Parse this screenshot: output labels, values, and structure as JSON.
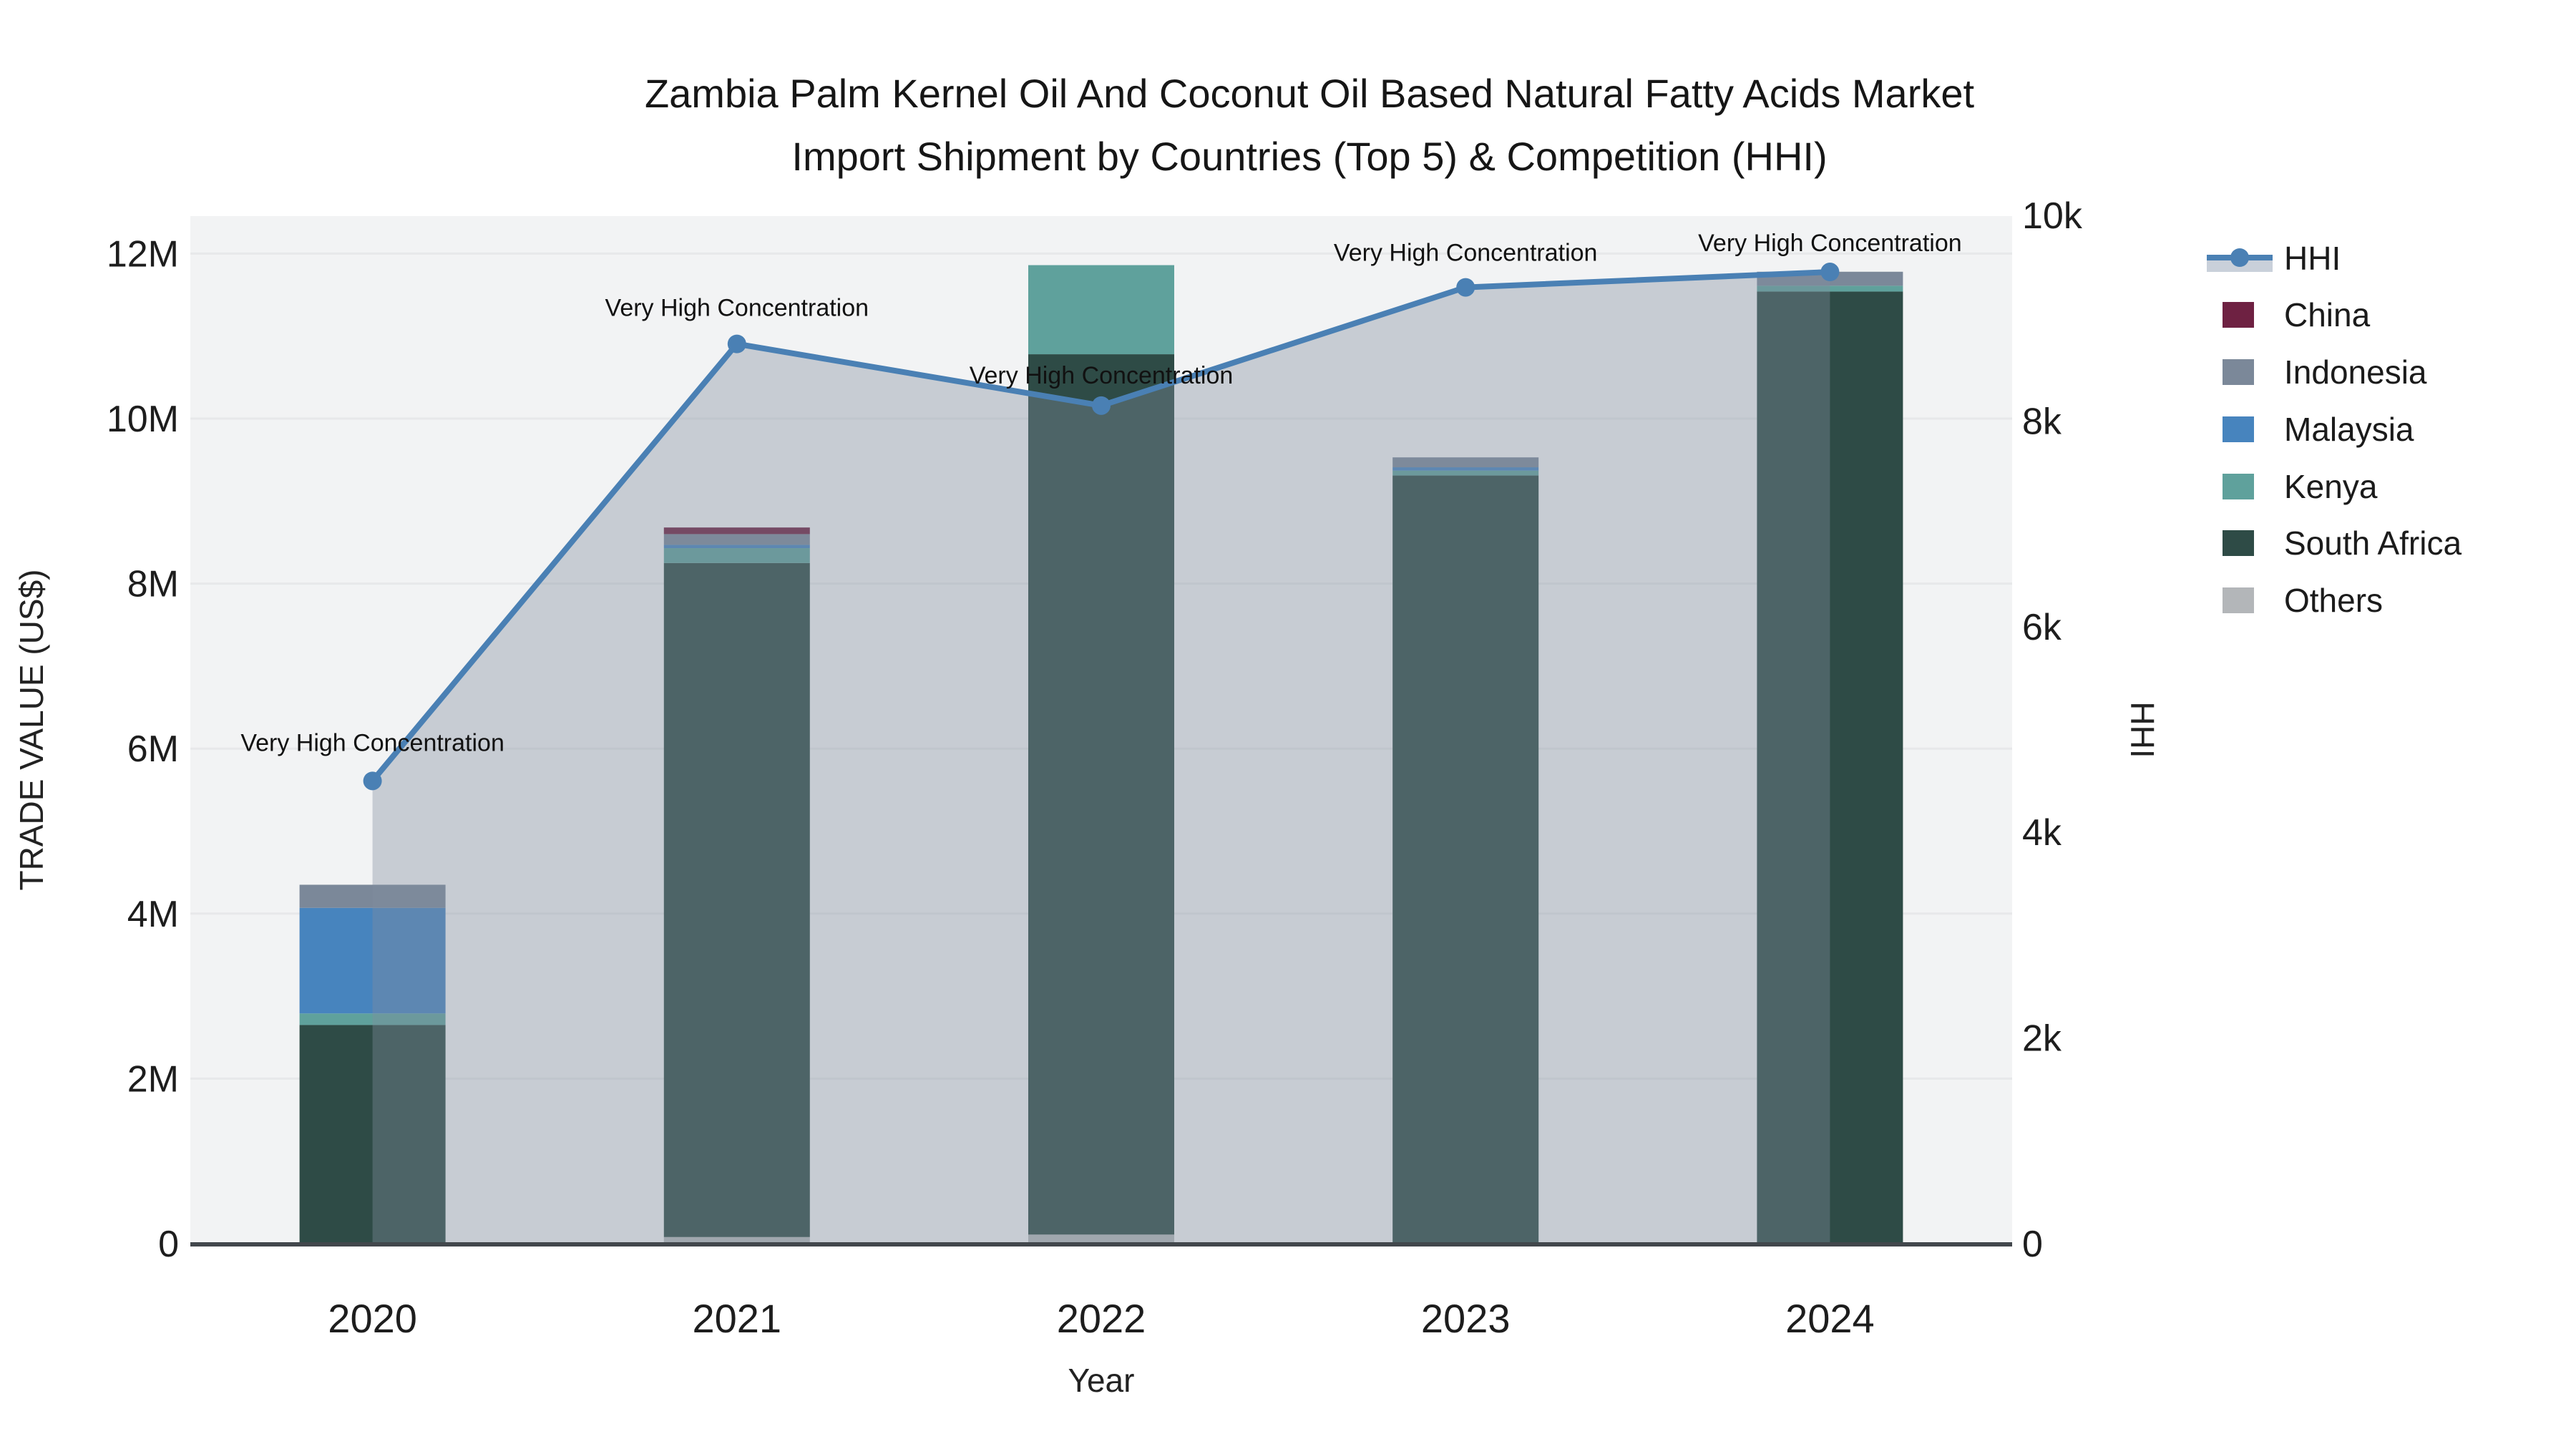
{
  "title": {
    "line1": "Zambia Palm Kernel Oil And Coconut Oil Based Natural Fatty Acids Market",
    "line2": "Import Shipment by Countries (Top 5) & Competition (HHI)"
  },
  "axes": {
    "x": {
      "title": "Year",
      "categories": [
        "2020",
        "2021",
        "2022",
        "2023",
        "2024"
      ]
    },
    "y_left": {
      "title": "TRADE VALUE (US$)",
      "ticks": [
        {
          "v": 0,
          "label": "0"
        },
        {
          "v": 2,
          "label": "2M"
        },
        {
          "v": 4,
          "label": "4M"
        },
        {
          "v": 6,
          "label": "6M"
        },
        {
          "v": 8,
          "label": "8M"
        },
        {
          "v": 10,
          "label": "10M"
        },
        {
          "v": 12,
          "label": "12M"
        }
      ]
    },
    "y_right": {
      "title": "HHI",
      "ticks": [
        {
          "v": 0,
          "label": "0"
        },
        {
          "v": 2000,
          "label": "2k"
        },
        {
          "v": 4000,
          "label": "4k"
        },
        {
          "v": 6000,
          "label": "6k"
        },
        {
          "v": 8000,
          "label": "8k"
        },
        {
          "v": 10000,
          "label": "10k"
        }
      ]
    }
  },
  "legend": [
    {
      "label": "HHI",
      "type": "line",
      "color": "#4A80B4",
      "band": "#C9D0DA"
    },
    {
      "label": "China",
      "type": "swatch",
      "color": "#6E2142"
    },
    {
      "label": "Indonesia",
      "type": "swatch",
      "color": "#7B8899"
    },
    {
      "label": "Malaysia",
      "type": "swatch",
      "color": "#4784BE"
    },
    {
      "label": "Kenya",
      "type": "swatch",
      "color": "#5FA19C"
    },
    {
      "label": "South Africa",
      "type": "swatch",
      "color": "#2E4B46"
    },
    {
      "label": "Others",
      "type": "swatch",
      "color": "#B3B6B9"
    }
  ],
  "chart_data": {
    "type": "combo",
    "categories": [
      "2020",
      "2021",
      "2022",
      "2023",
      "2024"
    ],
    "bar_unit": "million US$ (trade value)",
    "stack_order": "bottom-to-top",
    "bar_series": [
      {
        "name": "Others",
        "color": "#B3B6B9",
        "values": [
          0,
          0.08,
          0.11,
          0,
          0
        ]
      },
      {
        "name": "South Africa",
        "color": "#2E4B46",
        "values": [
          2.65,
          8.17,
          10.67,
          9.31,
          11.54
        ]
      },
      {
        "name": "Kenya",
        "color": "#5FA19C",
        "values": [
          0.14,
          0.18,
          1.08,
          0.06,
          0.07
        ]
      },
      {
        "name": "Malaysia",
        "color": "#4784BE",
        "values": [
          1.28,
          0.04,
          0,
          0.04,
          0
        ]
      },
      {
        "name": "Indonesia",
        "color": "#7B8899",
        "values": [
          0.28,
          0.13,
          0,
          0.12,
          0.17
        ]
      },
      {
        "name": "China",
        "color": "#6E2142",
        "values": [
          0,
          0.08,
          0,
          0,
          0
        ]
      }
    ],
    "bar_totals_M": [
      4.35,
      8.68,
      11.86,
      9.53,
      11.78
    ],
    "line_series": {
      "name": "HHI",
      "axis": "right",
      "color": "#4A80B4",
      "area_fill": "rgba(128,142,158,0.38)",
      "values": [
        4500,
        8750,
        8150,
        9300,
        9450
      ]
    },
    "annotations": [
      "Very High Concentration",
      "Very High Concentration",
      "Very High Concentration",
      "Very High Concentration",
      "Very High Concentration"
    ],
    "ylim_left_M": [
      0,
      12.45
    ],
    "ylim_right": [
      0,
      10000
    ],
    "grid": true,
    "legend_position": "right"
  }
}
